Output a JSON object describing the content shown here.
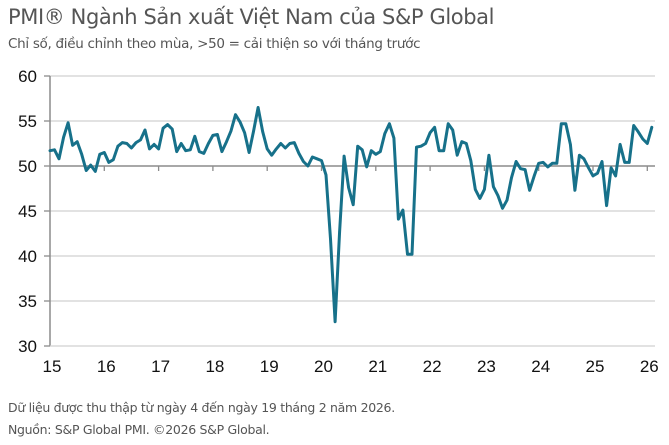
{
  "header": {
    "title": "PMI® Ngành Sản xuất Việt Nam của S&P Global",
    "subtitle": "Chỉ số, điều chỉnh theo mùa, >50 = cải thiện so với tháng trước"
  },
  "footer": {
    "line1": "Dữ liệu được thu thập từ ngày 4 đến ngày 19 tháng 2 năm 2026.",
    "line2": "Nguồn: S&P Global PMI. ©2026 S&P Global."
  },
  "colors": {
    "line": "#17718a",
    "grid": "#d0d0d0",
    "axis": "#8c8c8c",
    "text": "#555555"
  },
  "chart_data": {
    "type": "line",
    "title": "PMI® Ngành Sản xuất Việt Nam của S&P Global",
    "subtitle": "Chỉ số, điều chỉnh theo mùa, >50 = cải thiện so với tháng trước",
    "xlabel": "",
    "ylabel": "",
    "ylim": [
      30,
      60
    ],
    "yticks": [
      30,
      35,
      40,
      45,
      50,
      55,
      60
    ],
    "xlim": [
      2015,
      2026.1
    ],
    "xtick_labels": [
      "15",
      "16",
      "17",
      "18",
      "19",
      "20",
      "21",
      "22",
      "23",
      "24",
      "25",
      "26"
    ],
    "xtick_years": [
      2015,
      2016,
      2017,
      2018,
      2019,
      2020,
      2021,
      2022,
      2023,
      2024,
      2025,
      2026
    ],
    "grid": "horizontal",
    "legend": "none",
    "start": "2015-01",
    "frequency": "monthly",
    "series": [
      {
        "name": "PMI Ngành Sản xuất Việt Nam",
        "values": [
          51.7,
          51.8,
          50.8,
          53.2,
          54.8,
          52.3,
          52.7,
          51.3,
          49.5,
          50.1,
          49.4,
          51.3,
          51.5,
          50.4,
          50.7,
          52.2,
          52.6,
          52.5,
          52.0,
          52.6,
          52.9,
          54.0,
          51.9,
          52.4,
          51.9,
          54.2,
          54.6,
          54.1,
          51.6,
          52.5,
          51.7,
          51.8,
          53.3,
          51.6,
          51.4,
          52.5,
          53.4,
          53.5,
          51.6,
          52.7,
          53.9,
          55.7,
          54.9,
          53.7,
          51.5,
          53.9,
          56.5,
          53.8,
          51.9,
          51.2,
          51.9,
          52.5,
          52.0,
          52.5,
          52.6,
          51.4,
          50.5,
          50.0,
          51.0,
          50.8,
          50.6,
          49.0,
          41.9,
          32.7,
          42.7,
          51.1,
          47.6,
          45.7,
          52.2,
          51.8,
          49.9,
          51.7,
          51.3,
          51.6,
          53.6,
          54.7,
          53.1,
          44.1,
          45.1,
          40.2,
          40.2,
          52.1,
          52.2,
          52.5,
          53.7,
          54.3,
          51.7,
          51.7,
          54.7,
          54.0,
          51.2,
          52.7,
          52.5,
          50.6,
          47.4,
          46.4,
          47.4,
          51.2,
          47.7,
          46.7,
          45.3,
          46.2,
          48.7,
          50.5,
          49.7,
          49.6,
          47.3,
          48.9,
          50.3,
          50.4,
          49.9,
          50.3,
          50.3,
          54.7,
          54.7,
          52.4,
          47.3,
          51.2,
          50.8,
          49.8,
          48.9,
          49.2,
          50.5,
          45.6,
          49.8,
          48.9,
          52.4,
          50.4,
          50.4,
          54.5,
          53.8,
          53.0,
          52.5,
          54.3
        ]
      }
    ]
  }
}
